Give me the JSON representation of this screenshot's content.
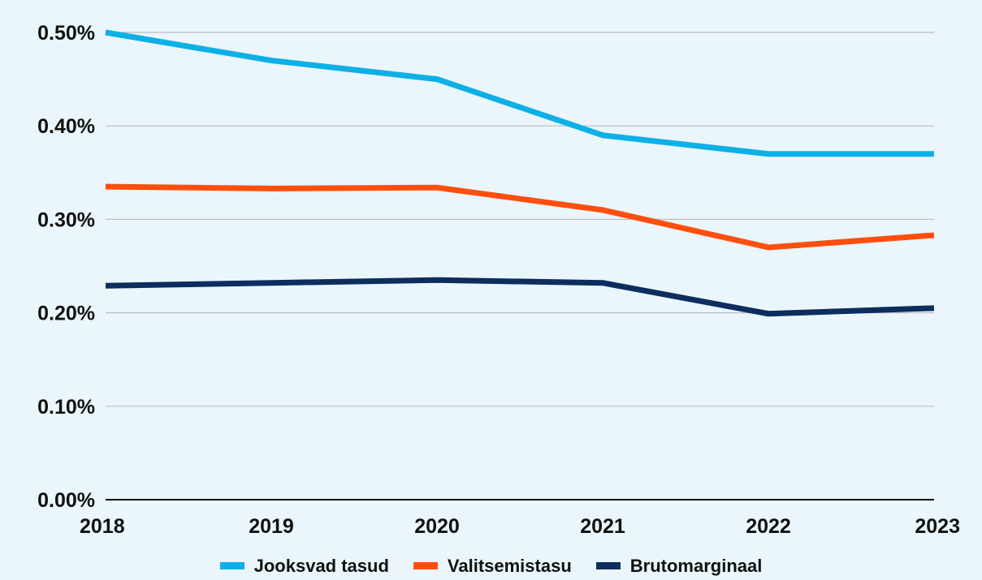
{
  "chart_data": {
    "type": "line",
    "title": "",
    "xlabel": "",
    "ylabel": "",
    "categories": [
      "2018",
      "2019",
      "2020",
      "2021",
      "2022",
      "2023"
    ],
    "ylim": [
      0,
      0.5
    ],
    "yticks": [
      0,
      0.1,
      0.2,
      0.3,
      0.4,
      0.5
    ],
    "ytick_labels": [
      "0.00%",
      "0.10%",
      "0.20%",
      "0.30%",
      "0.40%",
      "0.50%"
    ],
    "grid": true,
    "legend_position": "bottom",
    "series": [
      {
        "name": "Jooksvad tasud",
        "color": "#0db0e6",
        "values": [
          0.5,
          0.47,
          0.45,
          0.39,
          0.37,
          0.37
        ]
      },
      {
        "name": "Valitsemistasu",
        "color": "#ff4f0f",
        "values": [
          0.335,
          0.333,
          0.334,
          0.31,
          0.27,
          0.283
        ]
      },
      {
        "name": "Brutomarginaal",
        "color": "#0c2d5e",
        "values": [
          0.229,
          0.232,
          0.235,
          0.232,
          0.199,
          0.205
        ]
      }
    ]
  }
}
